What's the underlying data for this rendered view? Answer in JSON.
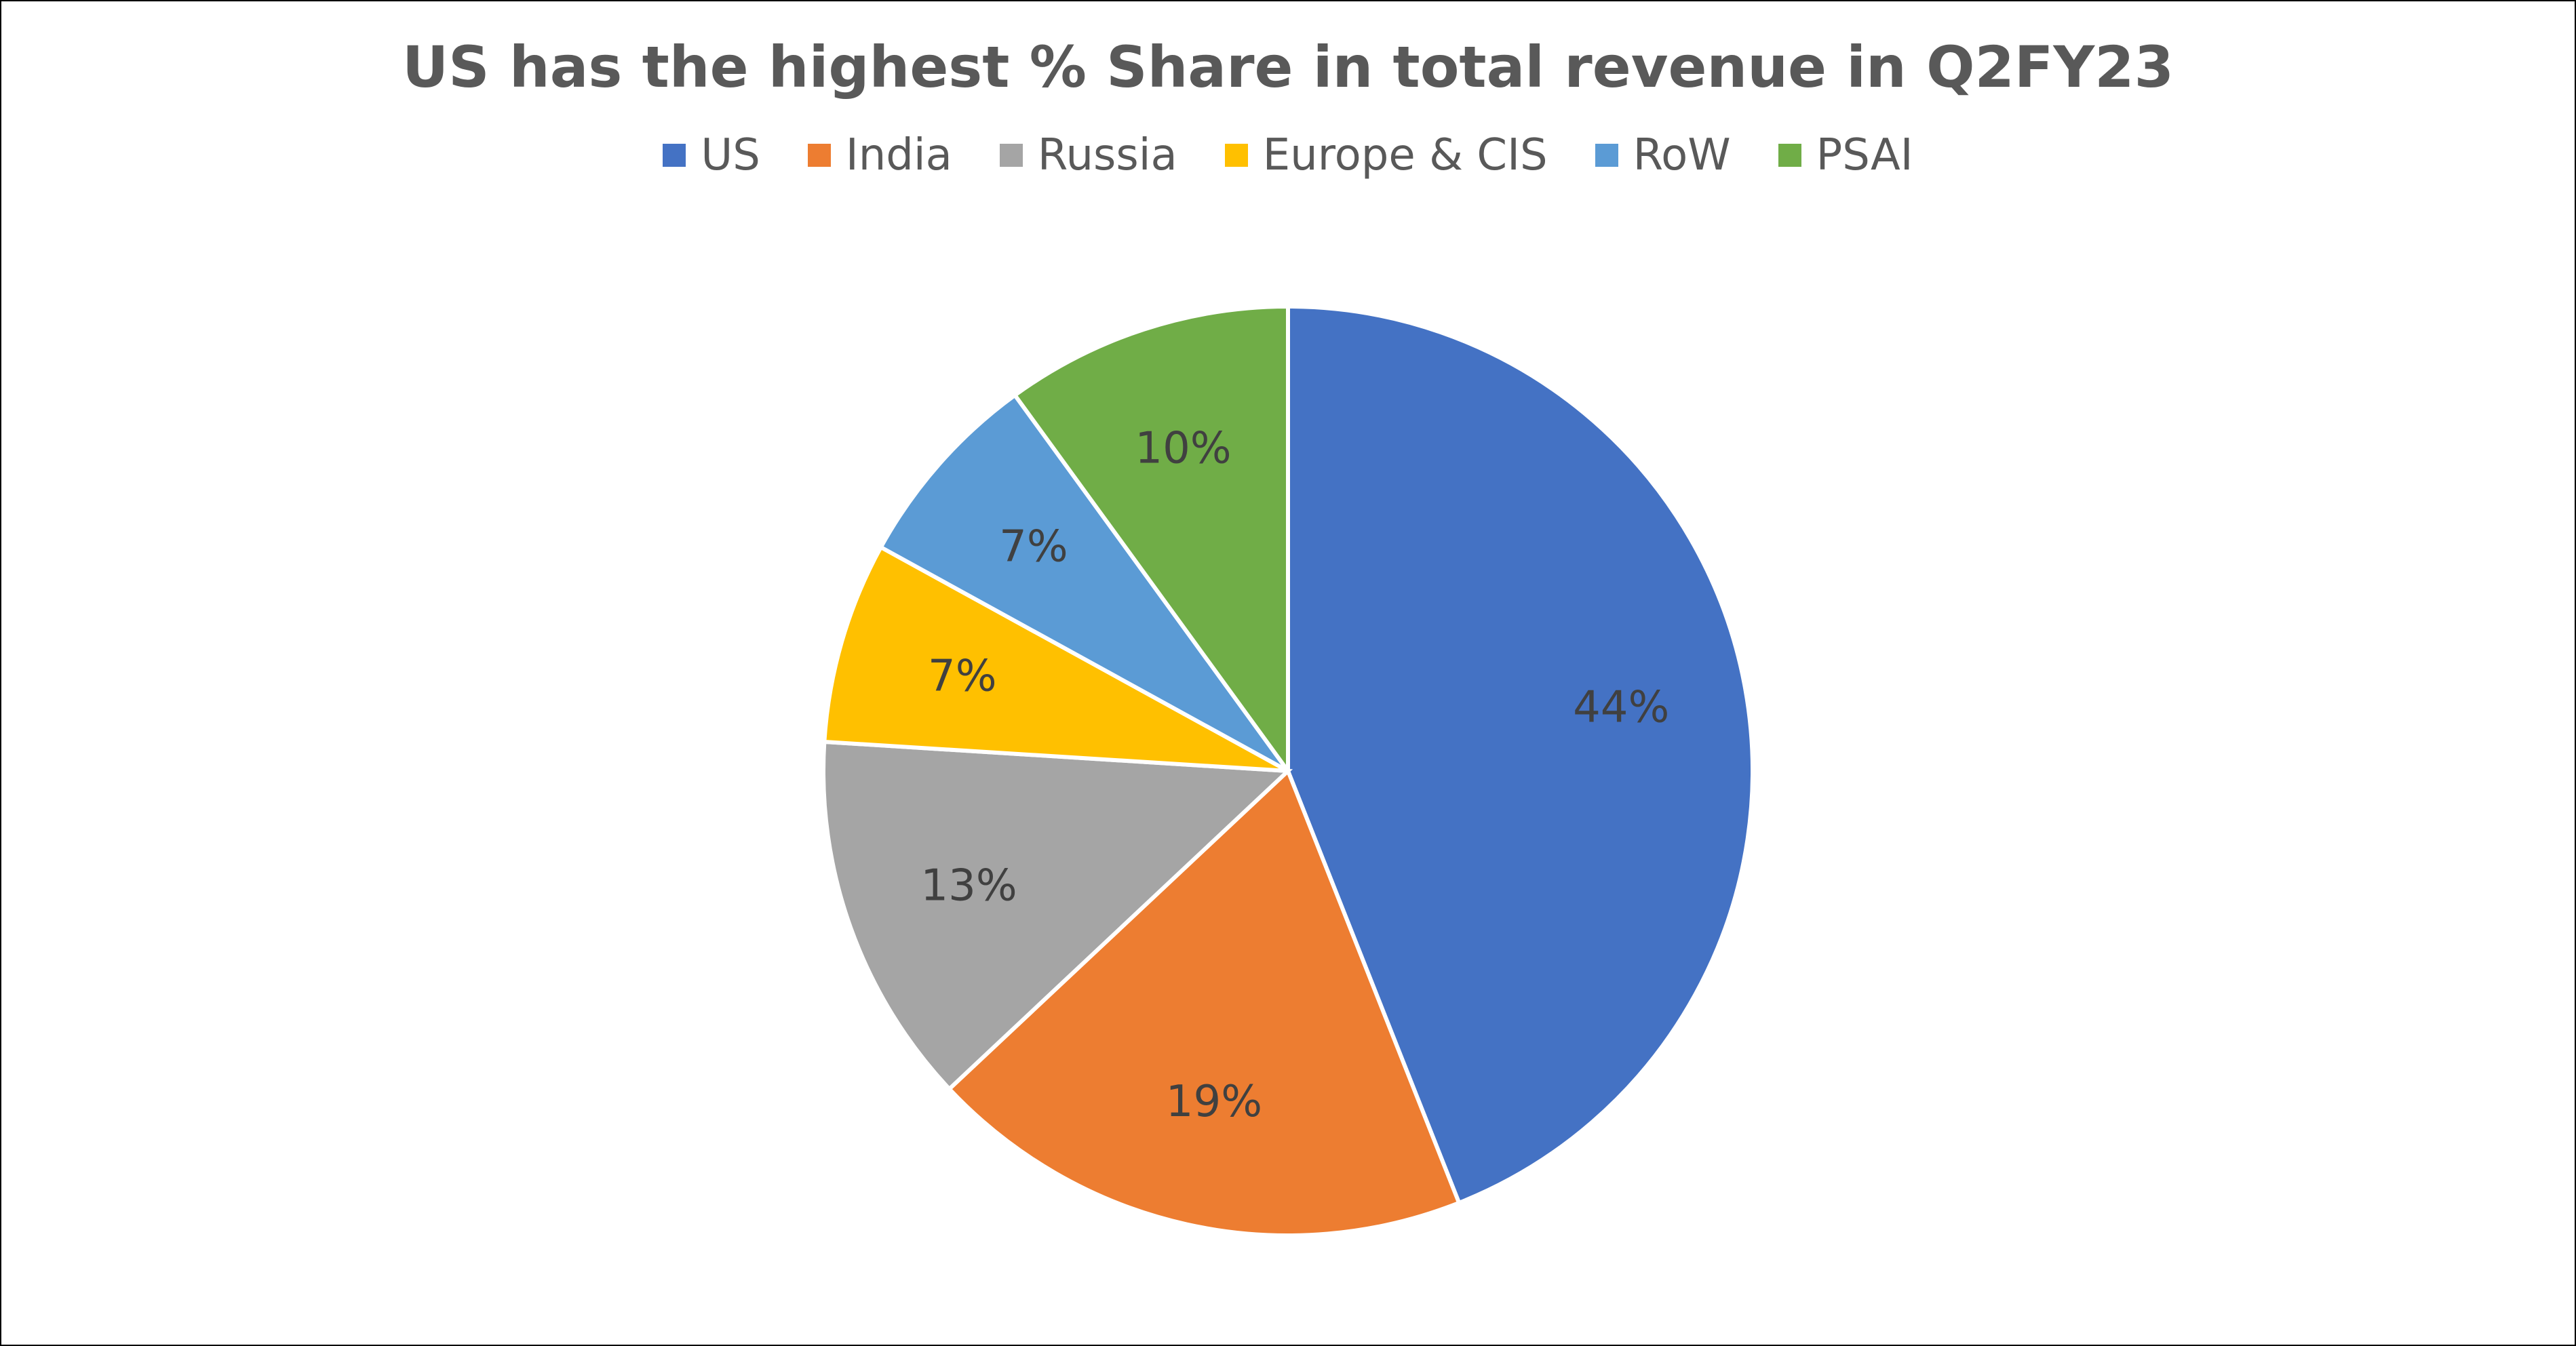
{
  "chart_data": {
    "type": "pie",
    "title": "US has the highest % Share in total revenue in Q2FY23",
    "legend_position": "top",
    "slices": [
      {
        "name": "US",
        "value": 44,
        "label": "44%",
        "color": "#4472C4"
      },
      {
        "name": "India",
        "value": 19,
        "label": "19%",
        "color": "#ED7D31"
      },
      {
        "name": "Russia",
        "value": 13,
        "label": "13%",
        "color": "#A5A5A5"
      },
      {
        "name": "Europe & CIS",
        "value": 7,
        "label": "7%",
        "color": "#FFC000"
      },
      {
        "name": "RoW",
        "value": 7,
        "label": "7%",
        "color": "#5B9BD5"
      },
      {
        "name": "PSAI",
        "value": 10,
        "label": "10%",
        "color": "#70AD47"
      }
    ]
  }
}
